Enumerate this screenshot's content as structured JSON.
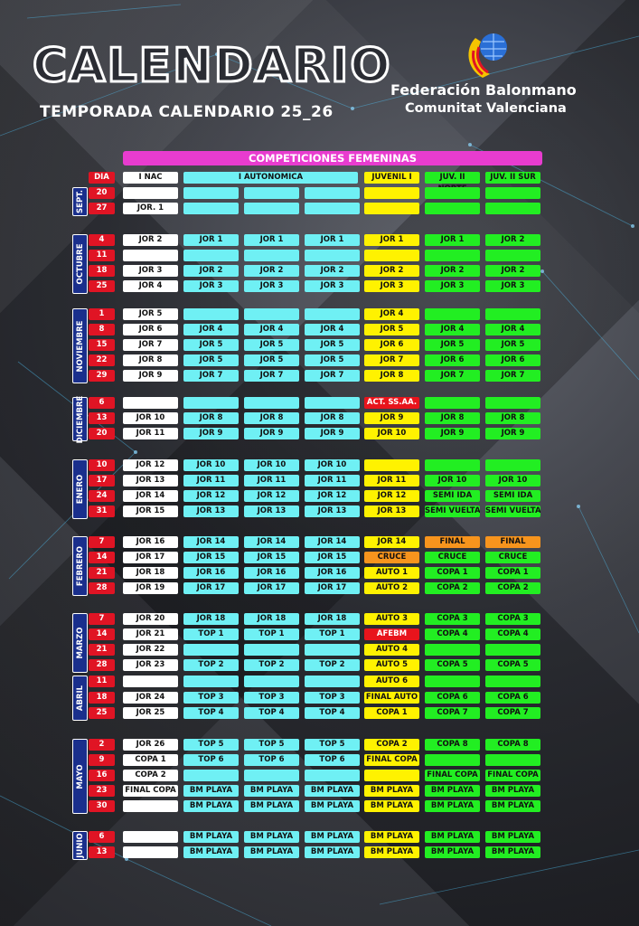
{
  "header": {
    "title": "CALENDARIO",
    "subtitle": "TEMPORADA CALENDARIO 25_26",
    "org_line1": "Federación Balonmano",
    "org_line2": "Comunitat Valenciana"
  },
  "banner": "COMPETICIONES FEMENINAS",
  "columns": [
    "DIA",
    "I NAC",
    "I AUTONOMICA",
    "JUVENIL I",
    "JUV. II NORTE",
    "JUV. II SUR"
  ],
  "colors": {
    "day": "#e01424",
    "white": "#ffffff",
    "cyan": "#6ff0f4",
    "yellow": "#fff200",
    "green": "#22ee22",
    "orange": "#f7941d",
    "red": "#e8141c",
    "month": "#1a2f8c",
    "banner": "#e83ccf"
  },
  "months": [
    {
      "name": "SEPT.",
      "rows": [
        {
          "day": "20",
          "nac": "",
          "a1": "",
          "a2": "",
          "a3": "",
          "juv": "",
          "jn": "",
          "js": ""
        },
        {
          "day": "27",
          "nac": "JOR. 1",
          "a1": "",
          "a2": "",
          "a3": "",
          "juv": "",
          "jn": "",
          "js": ""
        }
      ]
    },
    {
      "name": "OCTUBRE",
      "rows": [
        {
          "day": "4",
          "nac": "JOR 2",
          "a1": "JOR 1",
          "a2": "JOR 1",
          "a3": "JOR 1",
          "juv": "JOR 1",
          "jn": "JOR 1",
          "js": "JOR 2"
        },
        {
          "day": "11",
          "nac": "",
          "a1": "",
          "a2": "",
          "a3": "",
          "juv": "",
          "jn": "",
          "js": ""
        },
        {
          "day": "18",
          "nac": "JOR 3",
          "a1": "JOR 2",
          "a2": "JOR 2",
          "a3": "JOR 2",
          "juv": "JOR 2",
          "jn": "JOR 2",
          "js": "JOR 2"
        },
        {
          "day": "25",
          "nac": "JOR 4",
          "a1": "JOR 3",
          "a2": "JOR 3",
          "a3": "JOR 3",
          "juv": "JOR 3",
          "jn": "JOR 3",
          "js": "JOR 3"
        }
      ]
    },
    {
      "name": "NOVIEMBRE",
      "rows": [
        {
          "day": "1",
          "nac": "JOR 5",
          "a1": "",
          "a2": "",
          "a3": "",
          "juv": "JOR 4",
          "jn": "",
          "js": ""
        },
        {
          "day": "8",
          "nac": "JOR 6",
          "a1": "JOR 4",
          "a2": "JOR 4",
          "a3": "JOR 4",
          "juv": "JOR 5",
          "jn": "JOR 4",
          "js": "JOR 4"
        },
        {
          "day": "15",
          "nac": "JOR 7",
          "a1": "JOR 5",
          "a2": "JOR 5",
          "a3": "JOR 5",
          "juv": "JOR 6",
          "jn": "JOR 5",
          "js": "JOR 5"
        },
        {
          "day": "22",
          "nac": "JOR 8",
          "a1": "JOR 5",
          "a2": "JOR 5",
          "a3": "JOR 5",
          "juv": "JOR 7",
          "jn": "JOR 6",
          "js": "JOR 6"
        },
        {
          "day": "29",
          "nac": "JOR 9",
          "a1": "JOR 7",
          "a2": "JOR 7",
          "a3": "JOR 7",
          "juv": "JOR 8",
          "jn": "JOR 7",
          "js": "JOR 7"
        }
      ]
    },
    {
      "name": "DICIEMBRE",
      "rows": [
        {
          "day": "6",
          "nac": "",
          "a1": "",
          "a2": "",
          "a3": "",
          "juv": "ACT. SS.AA.",
          "jn": "",
          "js": ""
        },
        {
          "day": "13",
          "nac": "JOR 10",
          "a1": "JOR 8",
          "a2": "JOR 8",
          "a3": "JOR 8",
          "juv": "JOR 9",
          "jn": "JOR 8",
          "js": "JOR 8"
        },
        {
          "day": "20",
          "nac": "JOR 11",
          "a1": "JOR 9",
          "a2": "JOR 9",
          "a3": "JOR 9",
          "juv": "JOR 10",
          "jn": "JOR 9",
          "js": "JOR 9"
        }
      ]
    },
    {
      "name": "ENERO",
      "rows": [
        {
          "day": "10",
          "nac": "JOR 12",
          "a1": "JOR 10",
          "a2": "JOR 10",
          "a3": "JOR 10",
          "juv": "",
          "jn": "",
          "js": ""
        },
        {
          "day": "17",
          "nac": "JOR 13",
          "a1": "JOR 11",
          "a2": "JOR 11",
          "a3": "JOR 11",
          "juv": "JOR 11",
          "jn": "JOR 10",
          "js": "JOR 10"
        },
        {
          "day": "24",
          "nac": "JOR 14",
          "a1": "JOR 12",
          "a2": "JOR 12",
          "a3": "JOR 12",
          "juv": "JOR 12",
          "jn": "SEMI IDA",
          "js": "SEMI IDA"
        },
        {
          "day": "31",
          "nac": "JOR 15",
          "a1": "JOR 13",
          "a2": "JOR 13",
          "a3": "JOR 13",
          "juv": "JOR 13",
          "jn": "SEMI VUELTA",
          "js": "SEMI VUELTA"
        }
      ]
    },
    {
      "name": "FEBRERO",
      "rows": [
        {
          "day": "7",
          "nac": "JOR 16",
          "a1": "JOR 14",
          "a2": "JOR 14",
          "a3": "JOR 14",
          "juv": "JOR 14",
          "jn": "FINAL",
          "js": "FINAL"
        },
        {
          "day": "14",
          "nac": "JOR 17",
          "a1": "JOR 15",
          "a2": "JOR 15",
          "a3": "JOR 15",
          "juv": "CRUCE",
          "jn": "CRUCE",
          "js": "CRUCE"
        },
        {
          "day": "21",
          "nac": "JOR 18",
          "a1": "JOR 16",
          "a2": "JOR 16",
          "a3": "JOR 16",
          "juv": "AUTO 1",
          "jn": "COPA 1",
          "js": "COPA 1"
        },
        {
          "day": "28",
          "nac": "JOR 19",
          "a1": "JOR 17",
          "a2": "JOR 17",
          "a3": "JOR 17",
          "juv": "AUTO 2",
          "jn": "COPA 2",
          "js": "COPA 2"
        }
      ]
    },
    {
      "name": "MARZO",
      "rows": [
        {
          "day": "7",
          "nac": "JOR 20",
          "a1": "JOR 18",
          "a2": "JOR 18",
          "a3": "JOR 18",
          "juv": "AUTO 3",
          "jn": "COPA 3",
          "js": "COPA 3"
        },
        {
          "day": "14",
          "nac": "JOR 21",
          "a1": "TOP 1",
          "a2": "TOP 1",
          "a3": "TOP 1",
          "juv": "AFEBM",
          "jn": "COPA 4",
          "js": "COPA 4"
        },
        {
          "day": "21",
          "nac": "JOR 22",
          "a1": "",
          "a2": "",
          "a3": "",
          "juv": "AUTO 4",
          "jn": "",
          "js": ""
        },
        {
          "day": "28",
          "nac": "JOR 23",
          "a1": "TOP 2",
          "a2": "TOP 2",
          "a3": "TOP 2",
          "juv": "AUTO 5",
          "jn": "COPA 5",
          "js": "COPA 5"
        }
      ]
    },
    {
      "name": "ABRIL",
      "rows": [
        {
          "day": "11",
          "nac": "",
          "a1": "",
          "a2": "",
          "a3": "",
          "juv": "AUTO 6",
          "jn": "",
          "js": ""
        },
        {
          "day": "18",
          "nac": "JOR 24",
          "a1": "TOP 3",
          "a2": "TOP 3",
          "a3": "TOP 3",
          "juv": "FINAL AUTO",
          "jn": "COPA 6",
          "js": "COPA 6"
        },
        {
          "day": "25",
          "nac": "JOR 25",
          "a1": "TOP 4",
          "a2": "TOP 4",
          "a3": "TOP 4",
          "juv": "COPA 1",
          "jn": "COPA 7",
          "js": "COPA 7"
        }
      ]
    },
    {
      "name": "MAYO",
      "rows": [
        {
          "day": "2",
          "nac": "JOR 26",
          "a1": "TOP 5",
          "a2": "TOP 5",
          "a3": "TOP 5",
          "juv": "COPA 2",
          "jn": "COPA 8",
          "js": "COPA 8"
        },
        {
          "day": "9",
          "nac": "COPA 1",
          "a1": "TOP 6",
          "a2": "TOP 6",
          "a3": "TOP 6",
          "juv": "FINAL COPA",
          "jn": "",
          "js": ""
        },
        {
          "day": "16",
          "nac": "COPA 2",
          "a1": "",
          "a2": "",
          "a3": "",
          "juv": "",
          "jn": "FINAL COPA",
          "js": "FINAL COPA"
        },
        {
          "day": "23",
          "nac": "FINAL COPA",
          "a1": "BM PLAYA",
          "a2": "BM PLAYA",
          "a3": "BM PLAYA",
          "juv": "BM PLAYA",
          "jn": "BM PLAYA",
          "js": "BM PLAYA"
        },
        {
          "day": "30",
          "nac": "",
          "a1": "BM PLAYA",
          "a2": "BM PLAYA",
          "a3": "BM PLAYA",
          "juv": "BM PLAYA",
          "jn": "BM PLAYA",
          "js": "BM PLAYA"
        }
      ]
    },
    {
      "name": "JUNIO",
      "rows": [
        {
          "day": "6",
          "nac": "",
          "a1": "BM PLAYA",
          "a2": "BM PLAYA",
          "a3": "BM PLAYA",
          "juv": "BM PLAYA",
          "jn": "BM PLAYA",
          "js": "BM PLAYA"
        },
        {
          "day": "13",
          "nac": "",
          "a1": "BM PLAYA",
          "a2": "BM PLAYA",
          "a3": "BM PLAYA",
          "juv": "BM PLAYA",
          "jn": "BM PLAYA",
          "js": "BM PLAYA"
        }
      ]
    }
  ]
}
